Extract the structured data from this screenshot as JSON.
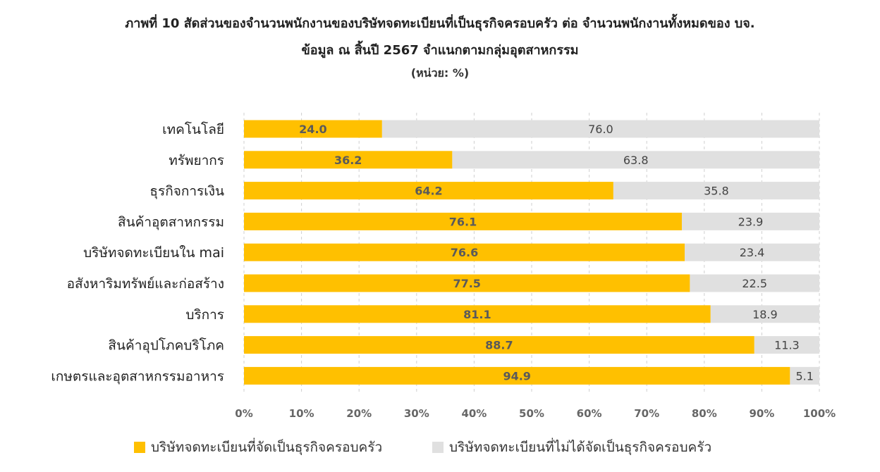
{
  "chart_data": {
    "type": "bar",
    "orientation": "horizontal",
    "stacked": true,
    "title": "ภาพที่ 10 สัดส่วนของจำนวนพนักงานของบริษัทจดทะเบียนที่เป็นธุรกิจครอบครัว ต่อ จำนวนพนักงานทั้งหมดของ บจ.",
    "subtitle": "ข้อมูล ณ สิ้นปี 2567 จำแนกตามกลุ่มอุตสาหกรรม",
    "unit_note": "(หน่วย: %)",
    "categories": [
      "เทคโนโลยี",
      "ทรัพยากร",
      "ธุรกิจการเงิน",
      "สินค้าอุตสาหกรรม",
      "บริษัทจดทะเบียนใน mai",
      "อสังหาริมทรัพย์และก่อสร้าง",
      "บริการ",
      "สินค้าอุปโภคบริโภค",
      "เกษตรและอุตสาหกรรมอาหาร"
    ],
    "series": [
      {
        "name": "บริษัทจดทะเบียนที่จัดเป็นธุรกิจครอบครัว",
        "color": "#FFC000",
        "values": [
          24.0,
          36.2,
          64.2,
          76.1,
          76.6,
          77.5,
          81.1,
          88.7,
          94.9
        ],
        "value_labels": [
          "24.0",
          "36.2",
          "64.2",
          "76.1",
          "76.6",
          "77.5",
          "81.1",
          "88.7",
          "94.9"
        ]
      },
      {
        "name": "บริษัทจดทะเบียนที่ไม่ได้จัดเป็นธุรกิจครอบครัว",
        "color": "#E0E0E0",
        "values": [
          76.0,
          63.8,
          35.8,
          23.9,
          23.4,
          22.5,
          18.9,
          11.3,
          5.1
        ],
        "value_labels": [
          "76.0",
          "63.8",
          "35.8",
          "23.9",
          "23.4",
          "22.5",
          "18.9",
          "11.3",
          "5.1"
        ]
      }
    ],
    "x_ticks": [
      "0%",
      "10%",
      "20%",
      "30%",
      "40%",
      "50%",
      "60%",
      "70%",
      "80%",
      "90%",
      "100%"
    ],
    "xlim": [
      0,
      100
    ],
    "grid": "vertical-dashed",
    "legend_position": "bottom"
  }
}
